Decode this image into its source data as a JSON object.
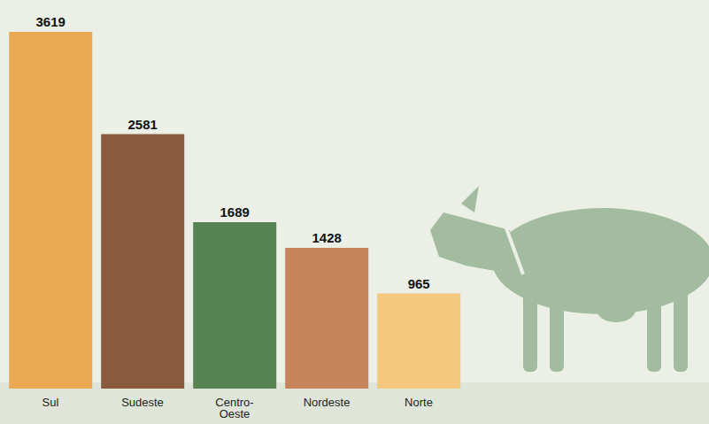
{
  "chart_data": {
    "type": "bar",
    "categories": [
      "Sul",
      "Sudeste",
      "Centro-Oeste",
      "Nordeste",
      "Norte"
    ],
    "values": [
      3619,
      2581,
      1689,
      1428,
      965
    ],
    "colors": [
      "#eaa852",
      "#8a5a3e",
      "#578353",
      "#c6845a",
      "#f5c97d"
    ],
    "data_labels": true,
    "tick_labels": "x",
    "grid": false
  }
}
